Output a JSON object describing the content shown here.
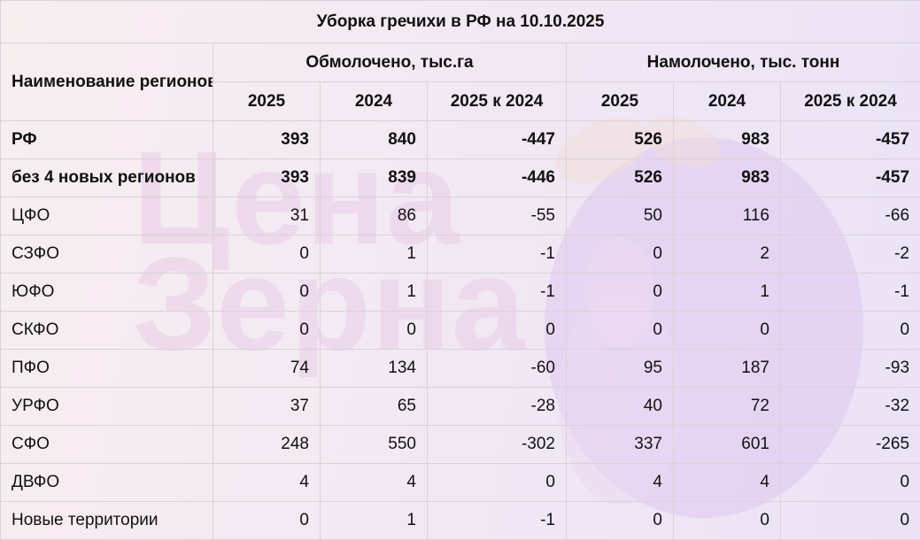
{
  "title": "Уборка гречихи в РФ на 10.10.2025",
  "header": {
    "name_col": "Наименование регионов",
    "group_threshed": "Обмолочено, тыс.га",
    "group_yield": "Намолочено, тыс. тонн",
    "sub": [
      "2025",
      "2024",
      "2025 к 2024",
      "2025",
      "2024",
      "2025 к 2024"
    ]
  },
  "rows": [
    {
      "name": "РФ",
      "bold": true,
      "values": [
        "393",
        "840",
        "-447",
        "526",
        "983",
        "-457"
      ]
    },
    {
      "name": "без 4 новых регионов",
      "bold": true,
      "values": [
        "393",
        "839",
        "-446",
        "526",
        "983",
        "-457"
      ]
    },
    {
      "name": "ЦФО",
      "bold": false,
      "values": [
        "31",
        "86",
        "-55",
        "50",
        "116",
        "-66"
      ]
    },
    {
      "name": "СЗФО",
      "bold": false,
      "values": [
        "0",
        "1",
        "-1",
        "0",
        "2",
        "-2"
      ]
    },
    {
      "name": "ЮФО",
      "bold": false,
      "values": [
        "0",
        "1",
        "-1",
        "0",
        "1",
        "-1"
      ]
    },
    {
      "name": "СКФО",
      "bold": false,
      "values": [
        "0",
        "0",
        "0",
        "0",
        "0",
        "0"
      ]
    },
    {
      "name": "ПФО",
      "bold": false,
      "values": [
        "74",
        "134",
        "-60",
        "95",
        "187",
        "-93"
      ]
    },
    {
      "name": "УРФО",
      "bold": false,
      "values": [
        "37",
        "65",
        "-28",
        "40",
        "72",
        "-32"
      ]
    },
    {
      "name": "СФО",
      "bold": false,
      "values": [
        "248",
        "550",
        "-302",
        "337",
        "601",
        "-265"
      ]
    },
    {
      "name": "ДВФО",
      "bold": false,
      "values": [
        "4",
        "4",
        "0",
        "4",
        "4",
        "0"
      ]
    },
    {
      "name": "Новые территории",
      "bold": false,
      "values": [
        "0",
        "1",
        "-1",
        "0",
        "0",
        "0"
      ]
    }
  ],
  "watermark": {
    "line1": "Цена",
    "line2": "Зерна"
  },
  "colors": {
    "background": "#f4ecf5",
    "watermark": "#e7c8e8",
    "border": "#d9d2d9"
  },
  "chart_data": {
    "type": "table",
    "title": "Уборка гречихи в РФ на 10.10.2025",
    "columns": [
      "Наименование регионов",
      "Обмолочено, тыс.га 2025",
      "Обмолочено, тыс.га 2024",
      "Обмолочено, тыс.га 2025 к 2024",
      "Намолочено, тыс. тонн 2025",
      "Намолочено, тыс. тонн 2024",
      "Намолочено, тыс. тонн 2025 к 2024"
    ],
    "rows": [
      [
        "РФ",
        393,
        840,
        -447,
        526,
        983,
        -457
      ],
      [
        "без 4 новых регионов",
        393,
        839,
        -446,
        526,
        983,
        -457
      ],
      [
        "ЦФО",
        31,
        86,
        -55,
        50,
        116,
        -66
      ],
      [
        "СЗФО",
        0,
        1,
        -1,
        0,
        2,
        -2
      ],
      [
        "ЮФО",
        0,
        1,
        -1,
        0,
        1,
        -1
      ],
      [
        "СКФО",
        0,
        0,
        0,
        0,
        0,
        0
      ],
      [
        "ПФО",
        74,
        134,
        -60,
        95,
        187,
        -93
      ],
      [
        "УРФО",
        37,
        65,
        -28,
        40,
        72,
        -32
      ],
      [
        "СФО",
        248,
        550,
        -302,
        337,
        601,
        -265
      ],
      [
        "ДВФО",
        4,
        4,
        0,
        4,
        4,
        0
      ],
      [
        "Новые территории",
        0,
        1,
        -1,
        0,
        0,
        0
      ]
    ]
  }
}
